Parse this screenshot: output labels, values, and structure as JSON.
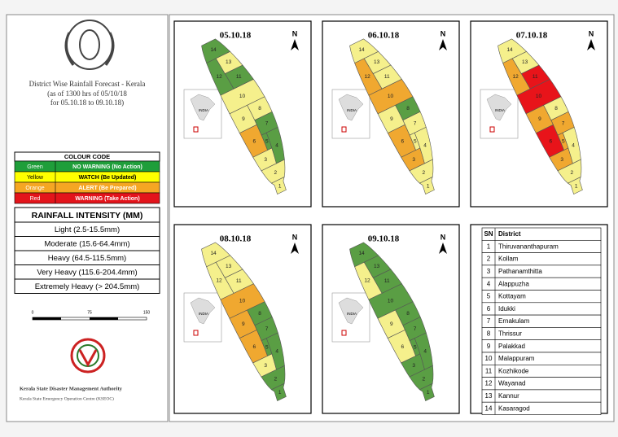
{
  "header": {
    "title": "District Wise Rainfall Forecast - Kerala",
    "subtitle": [
      "(as of 1300 hrs of 05/10/18",
      "for 05.10.18 to 09.10.18)"
    ]
  },
  "colour_code": {
    "title": "COLOUR CODE",
    "rows": [
      {
        "color_name": "Green",
        "meaning": "NO WARNING (No Action)",
        "color": "#1f9e3a",
        "map_color": "#5a9e44"
      },
      {
        "color_name": "Yellow",
        "meaning": "WATCH (Be Updated)",
        "color": "#ffff00",
        "map_color": "#f5f08c"
      },
      {
        "color_name": "Orange",
        "meaning": "ALERT (Be Prepared)",
        "color": "#f5a623",
        "map_color": "#f0a830"
      },
      {
        "color_name": "Red",
        "meaning": "WARNING (Take Action)",
        "color": "#e3141b",
        "map_color": "#e8141a"
      }
    ]
  },
  "rainfall_intensity": {
    "title": "RAINFALL INTENSITY (MM)",
    "rows": [
      "Light (2.5-15.5mm)",
      "Moderate (15.6-64.4mm)",
      "Heavy (64.5-115.5mm)",
      "Very Heavy (115.6-204.4mm)",
      "Extremely Heavy (> 204.5mm)"
    ]
  },
  "scale_bar": {
    "labels": [
      "0",
      "75",
      "150"
    ]
  },
  "footer": {
    "org": "Kerala State Disaster Management Authority",
    "lines": [
      "Kerala State Emergency Operation Centre (KSEOC)"
    ]
  },
  "maps": [
    {
      "date": "05.10.18",
      "north": "N",
      "inset": "INDIA",
      "levels": [
        1,
        1,
        1,
        0,
        0,
        2,
        0,
        1,
        1,
        1,
        0,
        0,
        1,
        0
      ]
    },
    {
      "date": "06.10.18",
      "north": "N",
      "inset": "INDIA",
      "levels": [
        1,
        1,
        2,
        1,
        1,
        2,
        1,
        0,
        1,
        2,
        1,
        2,
        1,
        1
      ]
    },
    {
      "date": "07.10.18",
      "north": "N",
      "inset": "INDIA",
      "levels": [
        1,
        1,
        2,
        1,
        2,
        3,
        2,
        1,
        2,
        3,
        3,
        2,
        1,
        1
      ]
    },
    {
      "date": "08.10.18",
      "north": "N",
      "inset": "INDIA",
      "levels": [
        0,
        0,
        1,
        0,
        0,
        2,
        0,
        0,
        2,
        2,
        1,
        1,
        1,
        1
      ]
    },
    {
      "date": "09.10.18",
      "north": "N",
      "inset": "INDIA",
      "levels": [
        0,
        0,
        0,
        0,
        0,
        1,
        0,
        0,
        1,
        0,
        0,
        1,
        0,
        0
      ]
    }
  ],
  "district_table": {
    "headers": [
      "SN",
      "District"
    ],
    "rows": [
      {
        "sn": "1",
        "name": "Thiruvananthapuram"
      },
      {
        "sn": "2",
        "name": "Kollam"
      },
      {
        "sn": "3",
        "name": "Pathanamthitta"
      },
      {
        "sn": "4",
        "name": "Alappuzha"
      },
      {
        "sn": "5",
        "name": "Kottayam"
      },
      {
        "sn": "6",
        "name": "Idukki"
      },
      {
        "sn": "7",
        "name": "Ernakulam"
      },
      {
        "sn": "8",
        "name": "Thrissur"
      },
      {
        "sn": "9",
        "name": "Palakkad"
      },
      {
        "sn": "10",
        "name": "Malappuram"
      },
      {
        "sn": "11",
        "name": "Kozhikode"
      },
      {
        "sn": "12",
        "name": "Wayanad"
      },
      {
        "sn": "13",
        "name": "Kannur"
      },
      {
        "sn": "14",
        "name": "Kasaragod"
      }
    ]
  }
}
